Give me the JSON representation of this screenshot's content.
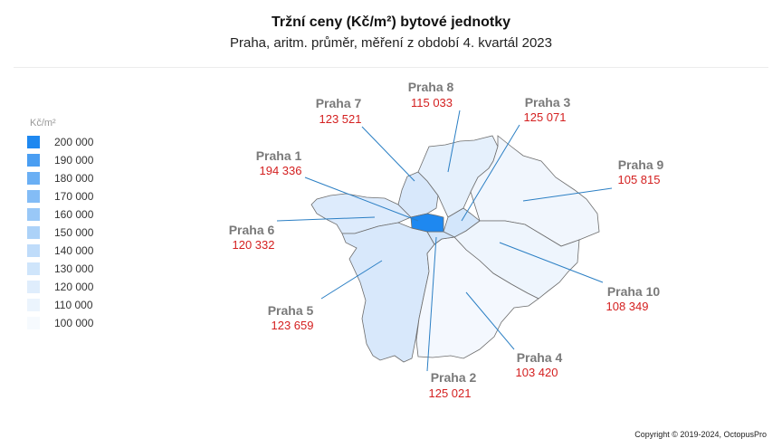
{
  "title": "Tržní ceny  (Kč/m²) bytové jednotky",
  "subtitle": "Praha,  aritm. průměr,  měření z období 4. kvartál 2023",
  "legend": {
    "unit": "Kč/m²",
    "items": [
      {
        "label": "200 000",
        "color": "#1e88f0"
      },
      {
        "label": "190 000",
        "color": "#4a9ef2"
      },
      {
        "label": "180 000",
        "color": "#6aaff4"
      },
      {
        "label": "170 000",
        "color": "#83bcf6"
      },
      {
        "label": "160 000",
        "color": "#99c8f7"
      },
      {
        "label": "150 000",
        "color": "#acd2f8"
      },
      {
        "label": "140 000",
        "color": "#bfdcfa"
      },
      {
        "label": "130 000",
        "color": "#cfe5fb"
      },
      {
        "label": "120 000",
        "color": "#dfedfc"
      },
      {
        "label": "110 000",
        "color": "#ebf4fd"
      },
      {
        "label": "100 000",
        "color": "#f6fafe"
      }
    ]
  },
  "districts": [
    {
      "key": "p1",
      "name": "Praha 1",
      "price": "194 336",
      "value": 194336,
      "color": "#1e88f0"
    },
    {
      "key": "p2",
      "name": "Praha 2",
      "price": "125 021",
      "value": 125021,
      "color": "#d3e6fb"
    },
    {
      "key": "p3",
      "name": "Praha 3",
      "price": "125 071",
      "value": 125071,
      "color": "#d3e6fb"
    },
    {
      "key": "p4",
      "name": "Praha 4",
      "price": "103 420",
      "value": 103420,
      "color": "#f4f8fe"
    },
    {
      "key": "p5",
      "name": "Praha 5",
      "price": "123 659",
      "value": 123659,
      "color": "#d8e8fb"
    },
    {
      "key": "p6",
      "name": "Praha 6",
      "price": "120 332",
      "value": 120332,
      "color": "#ddebfc"
    },
    {
      "key": "p7",
      "name": "Praha 7",
      "price": "123 521",
      "value": 123521,
      "color": "#d8e8fb"
    },
    {
      "key": "p8",
      "name": "Praha 8",
      "price": "115 033",
      "value": 115033,
      "color": "#e5f0fc"
    },
    {
      "key": "p9",
      "name": "Praha 9",
      "price": "105 815",
      "value": 105815,
      "color": "#f1f6fd"
    },
    {
      "key": "p10",
      "name": "Praha 10",
      "price": "108 349",
      "value": 108349,
      "color": "#eef5fd"
    }
  ],
  "copyright": "Copyright © 2019-2024, OctopusPro"
}
